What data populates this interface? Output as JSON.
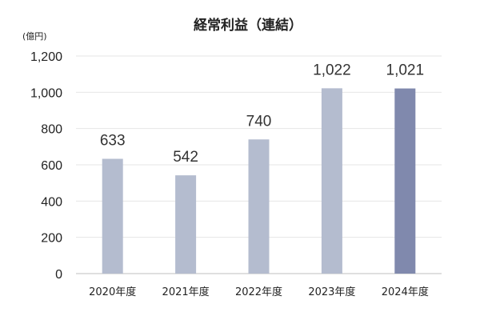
{
  "chart_data": {
    "type": "bar",
    "title": "経常利益（連結）",
    "unit_label": "(億円)",
    "categories": [
      "2020年度",
      "2021年度",
      "2022年度",
      "2023年度",
      "2024年度"
    ],
    "values": [
      633,
      542,
      740,
      1022,
      1021
    ],
    "value_labels": [
      "633",
      "542",
      "740",
      "1,022",
      "1,021"
    ],
    "y_ticks": [
      0,
      200,
      400,
      600,
      800,
      1000,
      1200
    ],
    "y_tick_labels": [
      "0",
      "200",
      "400",
      "600",
      "800",
      "1,000",
      "1,200"
    ],
    "ylim": [
      0,
      1200
    ],
    "grid": true,
    "bar_colors": [
      "#b4bccf",
      "#b4bccf",
      "#b4bccf",
      "#b4bccf",
      "#8089ad"
    ]
  }
}
